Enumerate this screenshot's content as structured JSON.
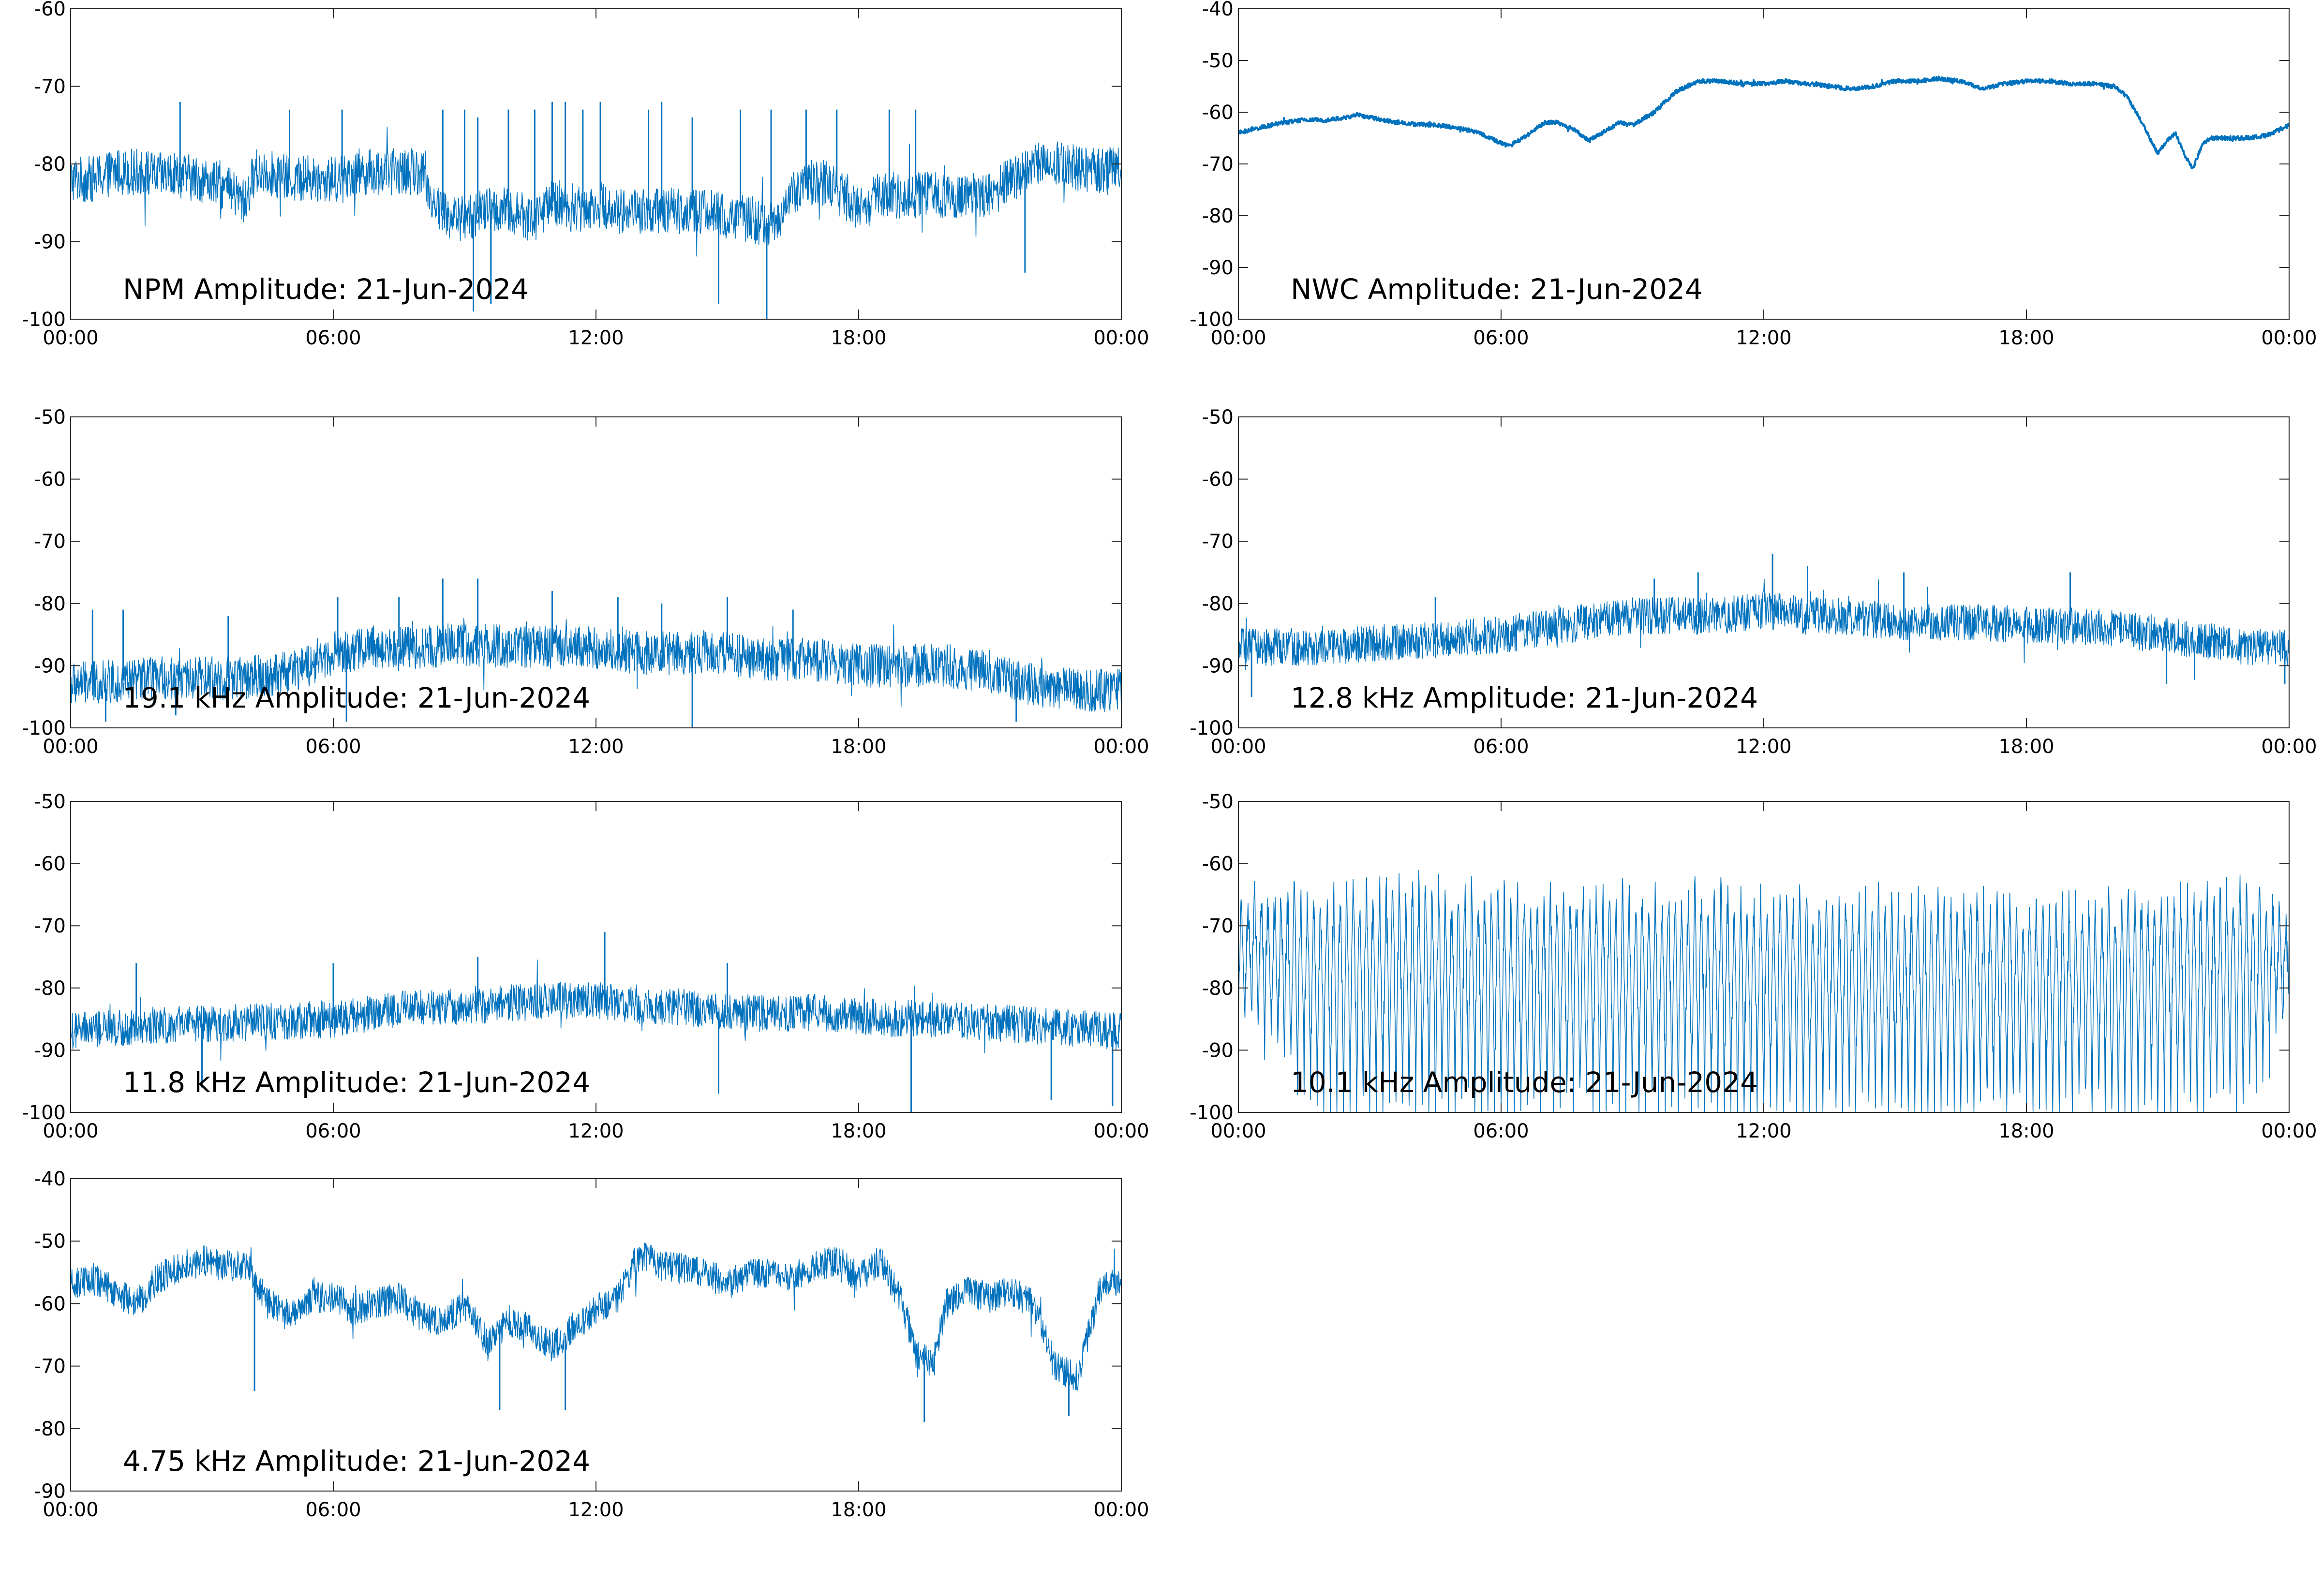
{
  "chart_data": [
    {
      "type": "line",
      "title": "NPM Amplitude: 21-Jun-2024",
      "xlabel": "",
      "ylabel": "",
      "x_ticks": [
        "00:00",
        "06:00",
        "12:00",
        "18:00",
        "00:00"
      ],
      "x_range_hours": [
        0,
        24
      ],
      "ylim": [
        -100,
        -60
      ],
      "y_ticks": [
        "-60",
        "-70",
        "-80",
        "-90",
        "-100"
      ],
      "grid": false,
      "color": "#0072BD",
      "series": [
        {
          "x_hours": [
            0,
            0.5,
            1,
            1.5,
            2,
            2.5,
            3,
            3.5,
            4,
            4.2,
            4.5,
            5,
            5.5,
            6,
            6.5,
            7,
            7.5,
            8,
            8.3,
            8.7,
            9,
            9.5,
            10,
            10.5,
            11,
            11.5,
            12,
            12.5,
            13,
            13.5,
            14,
            14.5,
            15,
            15.5,
            16,
            16.5,
            17,
            17.5,
            18,
            18.5,
            19,
            19.5,
            20,
            20.5,
            21,
            21.5,
            22,
            22.5,
            23,
            23.5,
            24
          ],
          "values": [
            -82,
            -82,
            -81,
            -81,
            -81.5,
            -81.5,
            -82,
            -83,
            -85,
            -81,
            -81,
            -82,
            -82,
            -82,
            -81,
            -81,
            -81,
            -81,
            -85,
            -87,
            -87,
            -86,
            -86,
            -87,
            -85,
            -86,
            -85,
            -86,
            -86,
            -86,
            -86,
            -86,
            -87,
            -87,
            -88,
            -84,
            -82,
            -83,
            -86,
            -84,
            -84,
            -84,
            -84,
            -84,
            -84,
            -82,
            -80,
            -80,
            -80.5,
            -81,
            -80
          ],
          "noise": 3,
          "spikes_hours": [
            2.5,
            5,
            6.2,
            8.5,
            9,
            9.3,
            10,
            10.6,
            11,
            11.3,
            11.7,
            12.1,
            13.2,
            13.5,
            14.2,
            15.3,
            16,
            16.8,
            17.5,
            18.7,
            19.3
          ],
          "spike_values": [
            -72,
            -73,
            -73,
            -73,
            -73,
            -74,
            -73,
            -73,
            -72,
            -72,
            -73,
            -72,
            -73,
            -72,
            -74,
            -73,
            -73,
            -73,
            -73,
            -73,
            -73
          ],
          "dips_hours": [
            9.2,
            9.6,
            14.8,
            15.9,
            21.8
          ],
          "dip_values": [
            -99,
            -98,
            -98,
            -100,
            -94
          ]
        }
      ]
    },
    {
      "type": "line",
      "title": "NWC Amplitude: 21-Jun-2024",
      "xlabel": "",
      "ylabel": "",
      "x_ticks": [
        "00:00",
        "06:00",
        "12:00",
        "18:00",
        "00:00"
      ],
      "x_range_hours": [
        0,
        24
      ],
      "ylim": [
        -100,
        -40
      ],
      "y_ticks": [
        "-40",
        "-50",
        "-60",
        "-70",
        "-80",
        "-90",
        "-100"
      ],
      "grid": false,
      "color": "#0072BD",
      "series": [
        {
          "x_hours": [
            0,
            0.5,
            1,
            1.5,
            2,
            2.5,
            2.7,
            3,
            3.5,
            4,
            4.5,
            5,
            5.5,
            6,
            6.2,
            6.5,
            7,
            7.3,
            7.7,
            8,
            8.3,
            8.7,
            9,
            9.5,
            10,
            10.5,
            11,
            11.5,
            12,
            12.5,
            13,
            13.5,
            14,
            14.5,
            15,
            15.5,
            16,
            16.5,
            17,
            17.5,
            18,
            18.5,
            19,
            19.5,
            20,
            20.3,
            20.7,
            21,
            21.2,
            21.4,
            21.6,
            21.8,
            22,
            22.2,
            22.5,
            23,
            23.5,
            24
          ],
          "values": [
            -64,
            -63,
            -62,
            -61.5,
            -61.5,
            -61,
            -60.5,
            -61,
            -61.8,
            -62.3,
            -62.5,
            -63,
            -64,
            -66,
            -66.5,
            -65,
            -62,
            -62,
            -63.5,
            -65.5,
            -64,
            -62,
            -62.5,
            -60,
            -56,
            -54,
            -54,
            -54.5,
            -54.5,
            -54,
            -54.5,
            -55,
            -55.5,
            -55,
            -54,
            -54,
            -53.5,
            -54,
            -55.5,
            -54.5,
            -54,
            -54,
            -54.5,
            -54.5,
            -55,
            -57,
            -63,
            -68,
            -65.5,
            -64,
            -68,
            -71,
            -66.5,
            -65,
            -65,
            -65,
            -64.5,
            -62.5
          ],
          "noise": 0.4,
          "spikes_hours": [],
          "spike_values": [],
          "dips_hours": [],
          "dip_values": []
        }
      ]
    },
    {
      "type": "line",
      "title": "19.1 kHz Amplitude: 21-Jun-2024",
      "xlabel": "",
      "ylabel": "",
      "x_ticks": [
        "00:00",
        "06:00",
        "12:00",
        "18:00",
        "00:00"
      ],
      "x_range_hours": [
        0,
        24
      ],
      "ylim": [
        -100,
        -50
      ],
      "y_ticks": [
        "-50",
        "-60",
        "-70",
        "-80",
        "-90",
        "-100"
      ],
      "grid": false,
      "color": "#0072BD",
      "series": [
        {
          "x_hours": [
            0,
            2,
            4,
            5,
            6,
            7,
            8,
            9,
            10,
            11,
            12,
            13,
            14,
            15,
            16,
            17,
            18,
            19,
            20,
            21,
            22,
            23,
            24
          ],
          "values": [
            -93,
            -92,
            -92,
            -91,
            -88,
            -87,
            -87,
            -86.5,
            -87,
            -87,
            -87,
            -88,
            -88,
            -88,
            -89,
            -89,
            -90,
            -90,
            -90,
            -91,
            -93,
            -94,
            -94
          ],
          "noise": 3.5,
          "spikes_hours": [
            0.5,
            1.2,
            3.6,
            6.1,
            7.5,
            8.5,
            9.3,
            11,
            12.5,
            13.5,
            15,
            16.5
          ],
          "spike_values": [
            -81,
            -81,
            -82,
            -79,
            -79,
            -76,
            -76,
            -78,
            -79,
            -80,
            -79,
            -81
          ],
          "dips_hours": [
            0.8,
            2.4,
            6.3,
            14.2,
            21.6
          ],
          "dip_values": [
            -99,
            -98,
            -99,
            -100,
            -99
          ]
        }
      ]
    },
    {
      "type": "line",
      "title": "12.8 kHz Amplitude: 21-Jun-2024",
      "xlabel": "",
      "ylabel": "",
      "x_ticks": [
        "00:00",
        "06:00",
        "12:00",
        "18:00",
        "00:00"
      ],
      "x_range_hours": [
        0,
        24
      ],
      "ylim": [
        -100,
        -50
      ],
      "y_ticks": [
        "-50",
        "-60",
        "-70",
        "-80",
        "-90",
        "-100"
      ],
      "grid": false,
      "color": "#0072BD",
      "series": [
        {
          "x_hours": [
            0,
            2,
            4,
            6,
            7,
            8,
            9,
            10,
            11,
            12,
            13,
            14,
            15,
            16,
            17,
            18,
            19,
            20,
            21,
            22,
            23,
            24
          ],
          "values": [
            -87,
            -87,
            -86,
            -85,
            -84,
            -83,
            -82,
            -82,
            -82,
            -81,
            -82,
            -82,
            -83,
            -83,
            -83,
            -83.5,
            -83.5,
            -84,
            -85,
            -86,
            -87,
            -87
          ],
          "noise": 3,
          "spikes_hours": [
            4.5,
            9.5,
            10.5,
            12.2,
            13,
            15.2,
            19
          ],
          "spike_values": [
            -79,
            -76,
            -75,
            -72,
            -74,
            -75,
            -75
          ],
          "dips_hours": [
            0.3,
            21.2,
            23.9
          ],
          "dip_values": [
            -95,
            -93,
            -93
          ]
        }
      ]
    },
    {
      "type": "line",
      "title": "11.8 kHz Amplitude: 21-Jun-2024",
      "xlabel": "",
      "ylabel": "",
      "x_ticks": [
        "00:00",
        "06:00",
        "12:00",
        "18:00",
        "00:00"
      ],
      "x_range_hours": [
        0,
        24
      ],
      "ylim": [
        -100,
        -50
      ],
      "y_ticks": [
        "-50",
        "-60",
        "-70",
        "-80",
        "-90",
        "-100"
      ],
      "grid": false,
      "color": "#0072BD",
      "series": [
        {
          "x_hours": [
            0,
            2,
            4,
            6,
            7,
            8,
            9,
            10,
            11,
            12,
            13,
            14,
            15,
            16,
            17,
            18,
            19,
            20,
            21,
            22,
            23,
            24
          ],
          "values": [
            -87,
            -86,
            -85.5,
            -85,
            -84,
            -83,
            -83,
            -82.5,
            -82,
            -82,
            -83,
            -83,
            -84,
            -84,
            -84,
            -84.5,
            -85,
            -85,
            -85.5,
            -86,
            -86.5,
            -87
          ],
          "noise": 3,
          "spikes_hours": [
            1.5,
            6,
            9.3,
            12.2,
            15
          ],
          "spike_values": [
            -76,
            -76,
            -75,
            -71,
            -76
          ],
          "dips_hours": [
            3,
            14.8,
            19.2,
            22.4,
            23.8
          ],
          "dip_values": [
            -96,
            -97,
            -100,
            -98,
            -99
          ]
        }
      ]
    },
    {
      "type": "line",
      "title": "10.1 kHz Amplitude: 21-Jun-2024",
      "xlabel": "",
      "ylabel": "",
      "x_ticks": [
        "00:00",
        "06:00",
        "12:00",
        "18:00",
        "00:00"
      ],
      "x_range_hours": [
        0,
        24
      ],
      "ylim": [
        -100,
        -50
      ],
      "y_ticks": [
        "-50",
        "-60",
        "-70",
        "-80",
        "-90",
        "-100"
      ],
      "grid": false,
      "color": "#0072BD",
      "series": [
        {
          "x_hours": [
            0,
            2,
            4,
            6,
            8,
            10,
            12,
            14,
            16,
            18,
            20,
            22,
            23,
            24
          ],
          "values": [
            -76,
            -76,
            -75,
            -75.5,
            -76,
            -75,
            -75,
            -76,
            -76,
            -75.5,
            -75,
            -74,
            -74,
            -79
          ],
          "noise": 4,
          "oscillation_count": 160,
          "oscillation_top": [
            -66,
            -65,
            -63,
            -65,
            -65,
            -64,
            -65,
            -65,
            -66,
            -66,
            -66,
            -64,
            -63,
            -70
          ],
          "oscillation_bottom": [
            -84,
            -100,
            -100,
            -100,
            -100,
            -100,
            -100,
            -100,
            -100,
            -100,
            -100,
            -100,
            -100,
            -83
          ],
          "spikes_hours": [],
          "spike_values": [],
          "dips_hours": [],
          "dip_values": []
        }
      ]
    },
    {
      "type": "line",
      "title": "4.75 kHz Amplitude: 21-Jun-2024",
      "xlabel": "",
      "ylabel": "",
      "x_ticks": [
        "00:00",
        "06:00",
        "12:00",
        "18:00",
        "00:00"
      ],
      "x_range_hours": [
        0,
        24
      ],
      "ylim": [
        -90,
        -40
      ],
      "y_ticks": [
        "-40",
        "-50",
        "-60",
        "-70",
        "-80",
        "-90"
      ],
      "grid": false,
      "color": "#0072BD",
      "series": [
        {
          "x_hours": [
            0,
            0.5,
            1,
            1.5,
            2,
            2.5,
            3,
            3.5,
            4,
            4.5,
            5,
            5.5,
            6,
            6.5,
            7,
            7.5,
            8,
            8.5,
            9,
            9.5,
            10,
            10.5,
            11,
            11.5,
            12,
            12.5,
            13,
            13.5,
            14,
            14.5,
            15,
            15.5,
            16,
            16.5,
            17,
            17.5,
            18,
            18.5,
            19,
            19.3,
            19.7,
            20,
            20.5,
            21,
            21.5,
            22,
            22.5,
            23,
            23.5,
            24
          ],
          "values": [
            -57,
            -56,
            -58,
            -60,
            -56,
            -54,
            -53,
            -54,
            -54,
            -60,
            -62,
            -59,
            -59,
            -61,
            -60,
            -59,
            -62,
            -63,
            -60,
            -66,
            -63,
            -64,
            -67,
            -64,
            -61,
            -59,
            -52,
            -54,
            -54.5,
            -55,
            -57,
            -55,
            -55,
            -55.5,
            -54,
            -53,
            -56,
            -53,
            -60,
            -68,
            -70,
            -60,
            -58,
            -59,
            -58,
            -60,
            -70,
            -72,
            -58,
            -56
          ],
          "noise": 2.5,
          "spikes_hours": [],
          "spike_values": [],
          "dips_hours": [
            4.2,
            9.8,
            11.3,
            19.5,
            22.8
          ],
          "dip_values": [
            -74,
            -77,
            -77,
            -79,
            -78
          ]
        }
      ]
    }
  ]
}
